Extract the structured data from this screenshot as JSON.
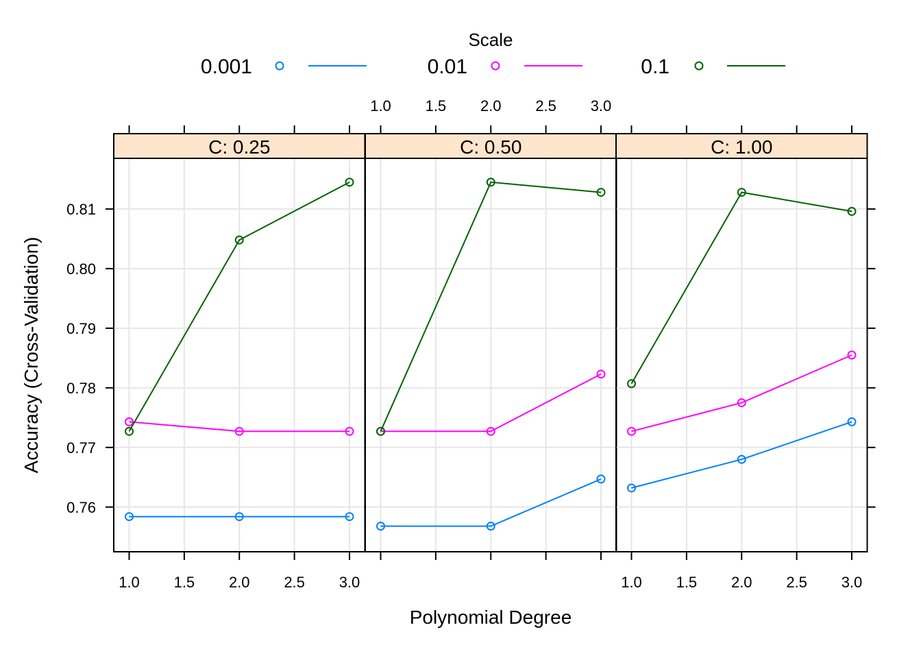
{
  "chart_data": {
    "type": "line",
    "x": [
      1,
      2,
      3
    ],
    "panels": [
      {
        "strip": "C: 0.25",
        "series": [
          {
            "name": "0.001",
            "values": [
              0.7584,
              0.7584,
              0.7584
            ]
          },
          {
            "name": "0.01",
            "values": [
              0.7743,
              0.7727,
              0.7727
            ]
          },
          {
            "name": "0.1",
            "values": [
              0.7727,
              0.8048,
              0.8145
            ]
          }
        ]
      },
      {
        "strip": "C: 0.50",
        "series": [
          {
            "name": "0.001",
            "values": [
              0.7568,
              0.7568,
              0.7647
            ]
          },
          {
            "name": "0.01",
            "values": [
              0.7727,
              0.7727,
              0.7823
            ]
          },
          {
            "name": "0.1",
            "values": [
              0.7727,
              0.8145,
              0.8128
            ]
          }
        ]
      },
      {
        "strip": "C: 1.00",
        "series": [
          {
            "name": "0.001",
            "values": [
              0.7632,
              0.768,
              0.7743
            ]
          },
          {
            "name": "0.01",
            "values": [
              0.7727,
              0.7775,
              0.7855
            ]
          },
          {
            "name": "0.1",
            "values": [
              0.7807,
              0.8128,
              0.8096
            ]
          }
        ]
      }
    ],
    "legend_title": "Scale",
    "legend_position": "top",
    "xlabel": "Polynomial Degree",
    "ylabel": "Accuracy (Cross-Validation)",
    "xticks": [
      "1.0",
      "1.5",
      "2.0",
      "2.5",
      "3.0"
    ],
    "yticks": [
      "0.76",
      "0.77",
      "0.78",
      "0.79",
      "0.80",
      "0.81"
    ],
    "xlim": [
      0.86,
      3.14
    ],
    "ylim": [
      0.7525,
      0.8185
    ],
    "grid": true,
    "colors": {
      "0.001": "#0080ff",
      "0.01": "#ff00ff",
      "0.1": "#006400"
    },
    "strip_bg": "#ffe5cc"
  }
}
